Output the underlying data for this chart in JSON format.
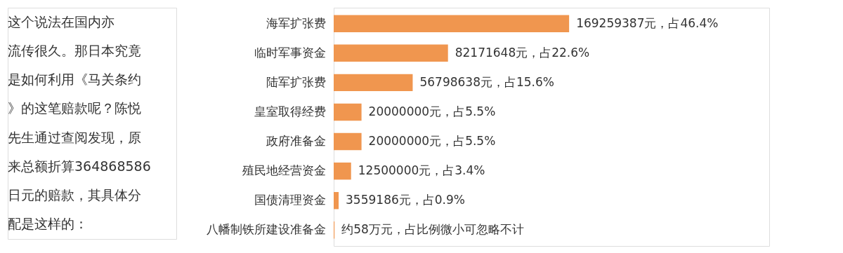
{
  "chart_data": {
    "type": "bar",
    "orientation": "horizontal",
    "categories": [
      "海军扩张费",
      "临时军事资金",
      "陆军扩张费",
      "皇室取得经费",
      "政府准备金",
      "殖民地经营资金",
      "国债清理资金",
      "八幡制铁所建设准备金"
    ],
    "values": [
      169259387,
      82171648,
      56798638,
      20000000,
      20000000,
      12500000,
      3559186,
      580000
    ],
    "value_labels": [
      "169259387元，占46.4%",
      "82171648元，占22.6%",
      "56798638元，占15.6%",
      "20000000元，占5.5%",
      "20000000元，占5.5%",
      "12500000元，占3.4%",
      "3559186元，占0.9%",
      "约58万元，占比例微小可忽略不计"
    ],
    "color": "#f0964f",
    "annotations": [
      "　　这个说法在国内亦流传很久。那日本究竟是如何利用《马关条约》的这笔赔款呢？陈悦先生通过查阅发现，原来总额折算364868586日元的赔款，其具体分配是这样的："
    ]
  }
}
